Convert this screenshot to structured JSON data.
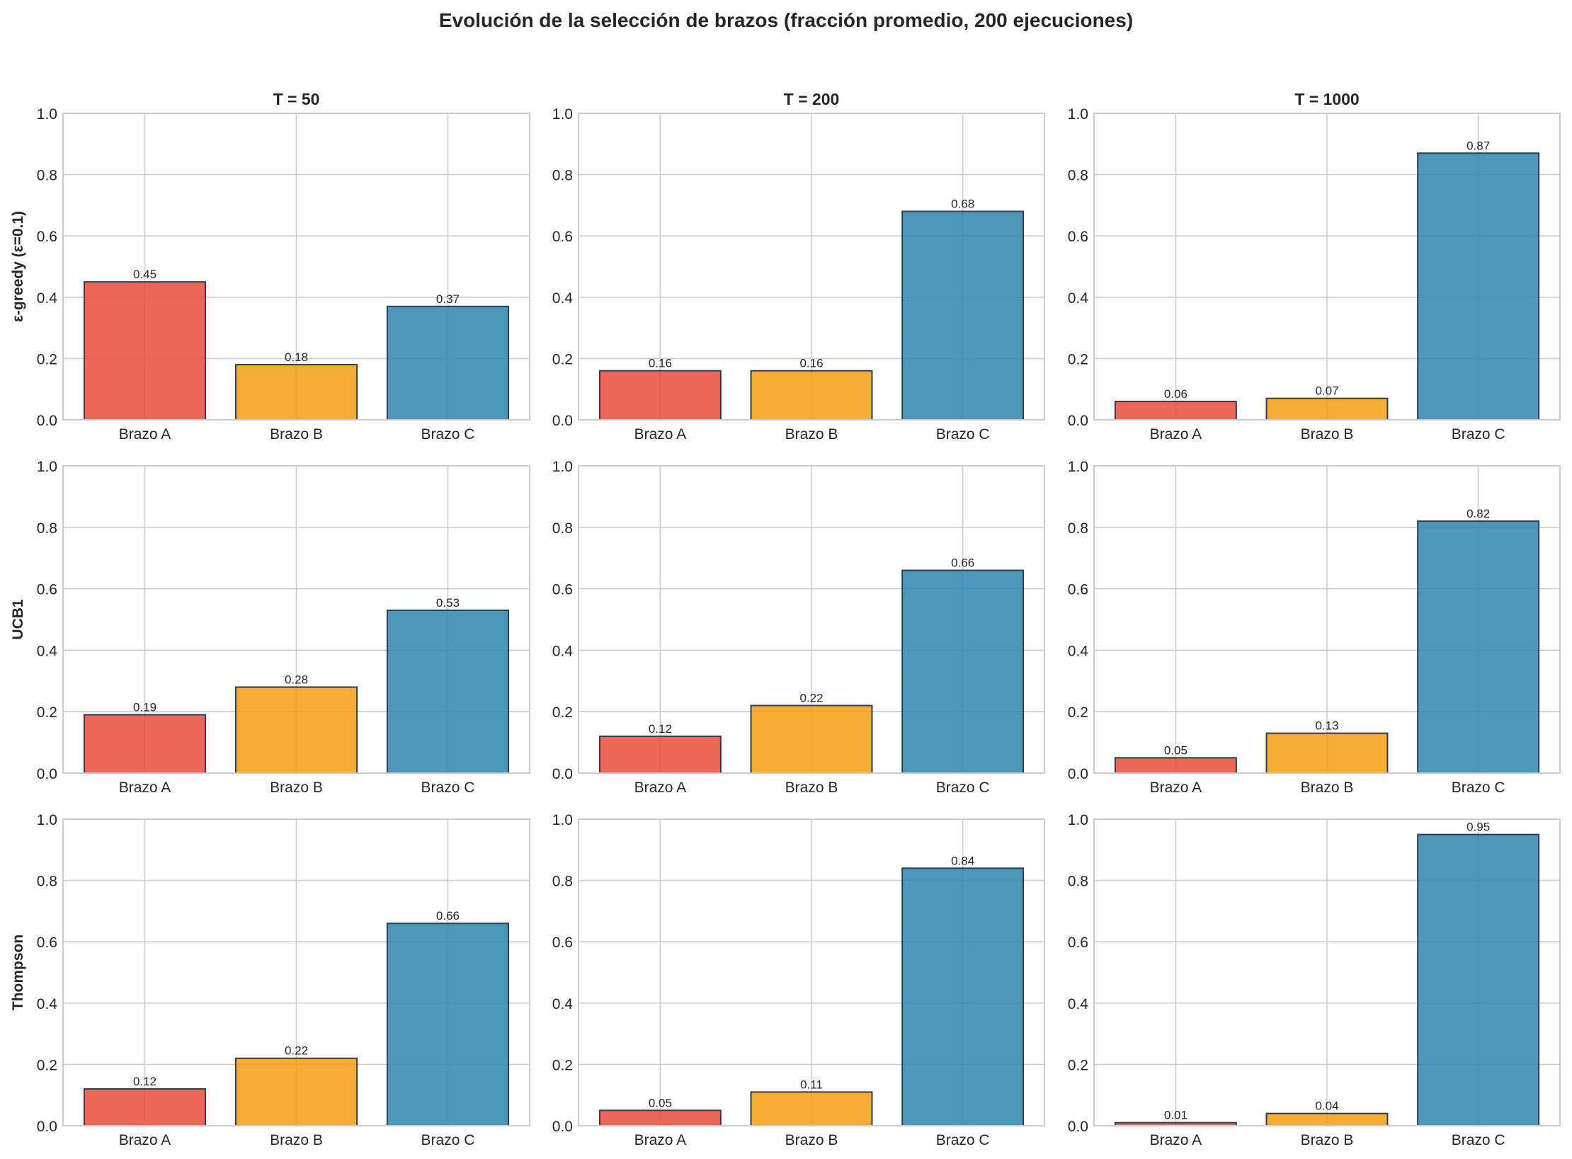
{
  "title": "Evolución de la selección de brazos (fracción promedio, 200 ejecuciones)",
  "chart_data": {
    "type": "bar",
    "layout": "3x3 grid of subplots",
    "categories": [
      "Brazo A",
      "Brazo B",
      "Brazo C"
    ],
    "bar_colors": [
      "#e74c3c",
      "#f39c12",
      "#2e86ab"
    ],
    "edge_color": "#2c3e50",
    "column_titles": [
      "T = 50",
      "T = 200",
      "T = 1000"
    ],
    "row_labels": [
      "ε-greedy (ε=0.1)",
      "UCB1",
      "Thompson"
    ],
    "ylim": [
      0,
      1.0
    ],
    "yticks": [
      "0.0",
      "0.2",
      "0.4",
      "0.6",
      "0.8",
      "1.0"
    ],
    "grid": true,
    "panels": [
      [
        {
          "values": [
            0.45,
            0.18,
            0.37
          ],
          "labels": [
            "0.45",
            "0.18",
            "0.37"
          ]
        },
        {
          "values": [
            0.16,
            0.16,
            0.68
          ],
          "labels": [
            "0.16",
            "0.16",
            "0.68"
          ]
        },
        {
          "values": [
            0.06,
            0.07,
            0.87
          ],
          "labels": [
            "0.06",
            "0.07",
            "0.87"
          ]
        }
      ],
      [
        {
          "values": [
            0.19,
            0.28,
            0.53
          ],
          "labels": [
            "0.19",
            "0.28",
            "0.53"
          ]
        },
        {
          "values": [
            0.12,
            0.22,
            0.66
          ],
          "labels": [
            "0.12",
            "0.22",
            "0.66"
          ]
        },
        {
          "values": [
            0.05,
            0.13,
            0.82
          ],
          "labels": [
            "0.05",
            "0.13",
            "0.82"
          ]
        }
      ],
      [
        {
          "values": [
            0.12,
            0.22,
            0.66
          ],
          "labels": [
            "0.12",
            "0.22",
            "0.66"
          ]
        },
        {
          "values": [
            0.05,
            0.11,
            0.84
          ],
          "labels": [
            "0.05",
            "0.11",
            "0.84"
          ]
        },
        {
          "values": [
            0.01,
            0.04,
            0.95
          ],
          "labels": [
            "0.01",
            "0.04",
            "0.95"
          ]
        }
      ]
    ]
  }
}
